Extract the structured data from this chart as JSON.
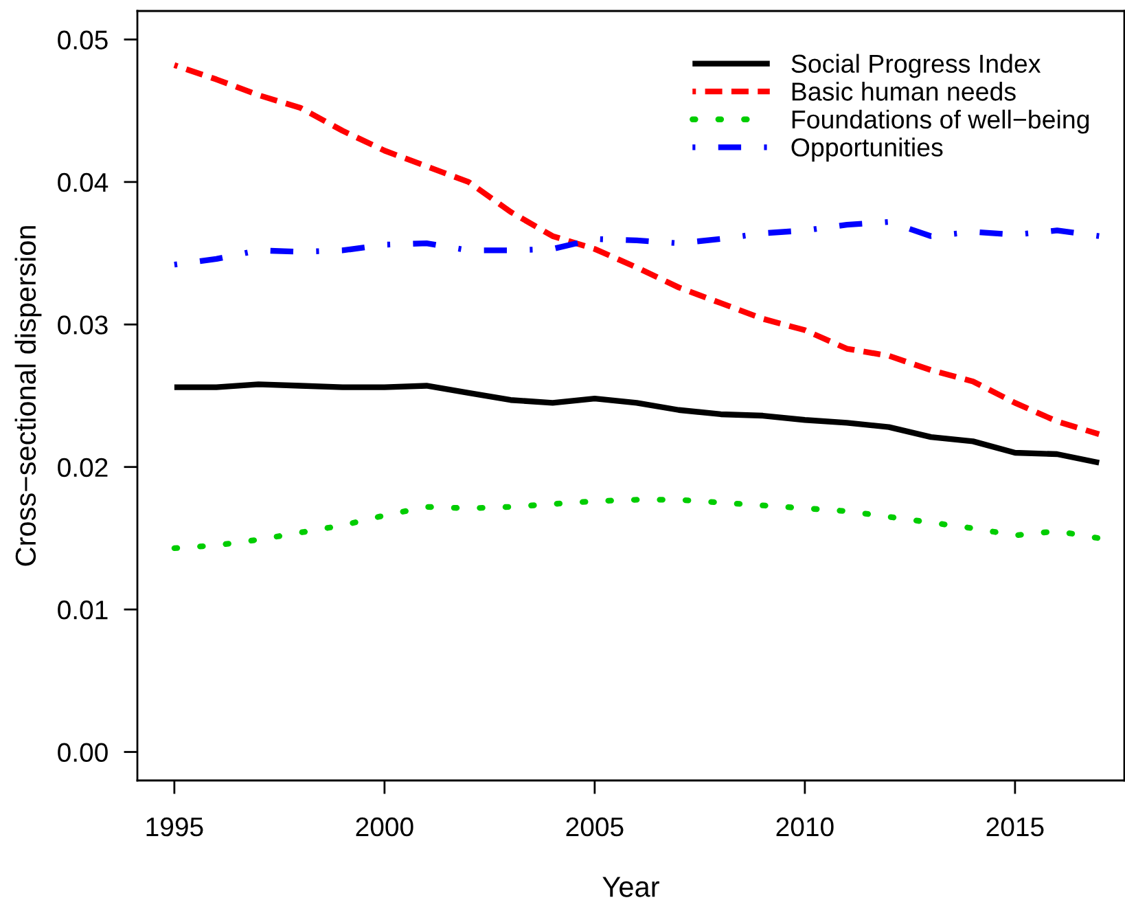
{
  "chart_data": {
    "type": "line",
    "xlabel": "Year",
    "ylabel": "Cross−sectional dispersion",
    "x": [
      1995,
      1996,
      1997,
      1998,
      1999,
      2000,
      2001,
      2002,
      2003,
      2004,
      2005,
      2006,
      2007,
      2008,
      2009,
      2010,
      2011,
      2012,
      2013,
      2014,
      2015,
      2016,
      2017
    ],
    "xlim": [
      1994.12,
      2017.6
    ],
    "xticks": [
      1995,
      2000,
      2005,
      2010,
      2015
    ],
    "ylim": [
      -0.002,
      0.052
    ],
    "yticks": [
      {
        "value": 0,
        "label": "0.00"
      },
      0.01,
      0.02,
      0.03,
      0.04,
      0.05
    ],
    "grid": false,
    "legend": "top right",
    "marker": "none",
    "series": [
      {
        "name": "Social Progress Index",
        "color": "#000000",
        "line_style": "solid",
        "values": [
          0.0256,
          0.0256,
          0.0258,
          0.0257,
          0.0256,
          0.0256,
          0.0257,
          0.0252,
          0.0247,
          0.0245,
          0.0248,
          0.0245,
          0.024,
          0.0237,
          0.0236,
          0.0233,
          0.0231,
          0.0228,
          0.0221,
          0.0218,
          0.021,
          0.0209,
          0.0203
        ]
      },
      {
        "name": "Basic human needs",
        "color": "#ff0000",
        "line_style": "dashed",
        "values": [
          0.0482,
          0.0472,
          0.0461,
          0.0452,
          0.0436,
          0.0422,
          0.0411,
          0.04,
          0.0379,
          0.0362,
          0.0353,
          0.034,
          0.0326,
          0.0315,
          0.0304,
          0.0296,
          0.0283,
          0.0278,
          0.0268,
          0.026,
          0.0245,
          0.0232,
          0.0223
        ]
      },
      {
        "name": "Foundations of well−being",
        "color": "#00cd00",
        "line_style": "dotted",
        "values": [
          0.0143,
          0.0145,
          0.0149,
          0.0154,
          0.0159,
          0.0166,
          0.0172,
          0.0171,
          0.0172,
          0.0174,
          0.0176,
          0.0177,
          0.0177,
          0.0175,
          0.0173,
          0.0171,
          0.0169,
          0.0165,
          0.0161,
          0.0157,
          0.0152,
          0.0155,
          0.015
        ]
      },
      {
        "name": "Opportunities",
        "color": "#0000ff",
        "line_style": "dashdot",
        "values": [
          0.0342,
          0.0346,
          0.0352,
          0.0351,
          0.0352,
          0.0356,
          0.0357,
          0.0352,
          0.0352,
          0.0353,
          0.036,
          0.0359,
          0.0357,
          0.036,
          0.0364,
          0.0366,
          0.037,
          0.0372,
          0.0362,
          0.0365,
          0.0363,
          0.0366,
          0.0362
        ]
      }
    ]
  }
}
